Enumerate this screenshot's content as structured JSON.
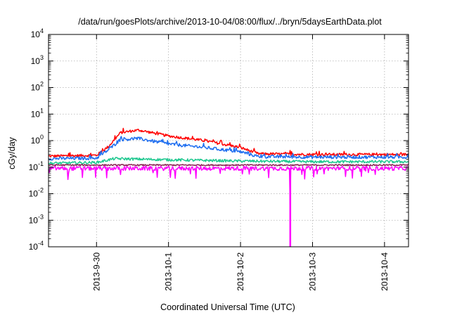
{
  "chart_data": {
    "type": "line",
    "title": "/data/run/goesPlots/archive/2013-10-04/08:00/flux/../bryn/5daysEarthData.plot",
    "xlabel": "Coordinated Universal Time (UTC)",
    "ylabel": "cGy/day",
    "y_scale": "log",
    "ylim": [
      0.0001,
      10000
    ],
    "y_ticks": [
      {
        "value": 0.0001,
        "base": "10",
        "exp": "-4"
      },
      {
        "value": 0.001,
        "base": "10",
        "exp": "-3"
      },
      {
        "value": 0.01,
        "base": "10",
        "exp": "-2"
      },
      {
        "value": 0.1,
        "base": "10",
        "exp": "-1"
      },
      {
        "value": 1,
        "base": "10",
        "exp": "0"
      },
      {
        "value": 10,
        "base": "10",
        "exp": "1"
      },
      {
        "value": 100,
        "base": "10",
        "exp": "2"
      },
      {
        "value": 1000,
        "base": "10",
        "exp": "3"
      },
      {
        "value": 10000,
        "base": "10",
        "exp": "4"
      }
    ],
    "x_axis_type": "date",
    "xlim": [
      "2013-09-29 08:00",
      "2013-10-04 08:00"
    ],
    "x_ticks": [
      "2013-9-30",
      "2013-10-1",
      "2013-10-2",
      "2013-10-3",
      "2013-10-4"
    ],
    "grid": true,
    "legend": "none",
    "series": [
      {
        "color": "#ff0000",
        "x": [
          "2013-09-29 08:00",
          "2013-09-30 00:00",
          "2013-09-30 04:00",
          "2013-09-30 08:00",
          "2013-09-30 14:00",
          "2013-10-01 00:00",
          "2013-10-01 12:00",
          "2013-10-02 00:00",
          "2013-10-02 06:00",
          "2013-10-03 00:00",
          "2013-10-04 08:00"
        ],
        "y": [
          0.26,
          0.28,
          0.6,
          2.0,
          2.5,
          1.5,
          1.0,
          0.55,
          0.32,
          0.3,
          0.3
        ]
      },
      {
        "color": "#1e6ef0",
        "x": [
          "2013-09-29 08:00",
          "2013-09-30 00:00",
          "2013-09-30 04:00",
          "2013-09-30 08:00",
          "2013-09-30 14:00",
          "2013-10-01 00:00",
          "2013-10-01 12:00",
          "2013-10-02 00:00",
          "2013-10-02 06:00",
          "2013-10-03 00:00",
          "2013-10-04 08:00"
        ],
        "y": [
          0.21,
          0.22,
          0.45,
          1.1,
          1.2,
          0.75,
          0.55,
          0.38,
          0.25,
          0.24,
          0.24
        ]
      },
      {
        "color": "#20c890",
        "x": [
          "2013-09-29 08:00",
          "2013-09-30 00:00",
          "2013-09-30 06:00",
          "2013-10-01 00:00",
          "2013-10-02 00:00",
          "2013-10-03 00:00",
          "2013-10-04 08:00"
        ],
        "y": [
          0.14,
          0.15,
          0.21,
          0.19,
          0.17,
          0.16,
          0.16
        ]
      },
      {
        "color": "#8b2252",
        "x": [
          "2013-09-29 08:00",
          "2013-10-04 08:00"
        ],
        "y": [
          0.12,
          0.12
        ]
      },
      {
        "color": "#ff00ff",
        "x": [
          "2013-09-29 08:00",
          "2013-10-02 16:30",
          "2013-10-02 16:35",
          "2013-10-02 16:40",
          "2013-10-02 16:45",
          "2013-10-04 08:00"
        ],
        "y": [
          0.09,
          0.09,
          0.0001,
          0.0001,
          0.09,
          0.09
        ]
      }
    ]
  }
}
